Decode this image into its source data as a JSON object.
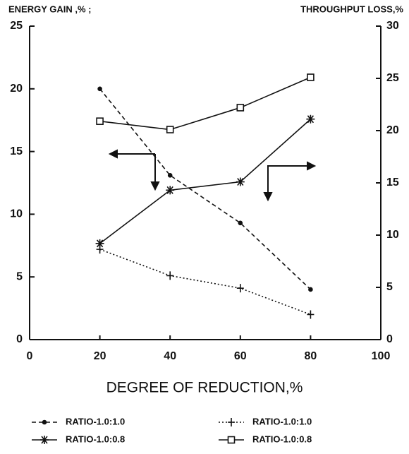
{
  "chart_data": {
    "type": "line",
    "y_label": "ENERGY GAIN ,% ;",
    "y2_label": "THROUGHPUT LOSS,%",
    "x_label": "DEGREE OF REDUCTION,%",
    "x": [
      20,
      40,
      60,
      80
    ],
    "series": [
      {
        "name": "RATIO-1.0:1.0",
        "color": "#111111",
        "marker": "dot",
        "line_style": "dashed",
        "values": [
          20,
          13.1,
          9.3,
          4
        ]
      },
      {
        "name": "RATIO-1.0:1.0",
        "color": "#111111",
        "marker": "plus",
        "line_style": "dotted",
        "values": [
          7.2,
          5.1,
          4.1,
          2
        ]
      },
      {
        "name": "RATIO-1.0:0.8",
        "color": "#111111",
        "marker": "asterisk",
        "line_style": "solid",
        "axis": "y2",
        "values": [
          9.2,
          14.3,
          15.1,
          21.1
        ]
      },
      {
        "name": "RATIO-1.0:0.8",
        "color": "#111111",
        "marker": "square",
        "line_style": "solid",
        "axis": "y2",
        "values": [
          20.9,
          20.1,
          22.2,
          25.1
        ]
      }
    ],
    "xlim": [
      0,
      100
    ],
    "xticks": [
      0,
      20,
      40,
      60,
      80,
      100
    ],
    "ylim": [
      0,
      25
    ],
    "yticks": [
      0,
      5,
      10,
      15,
      20,
      25
    ],
    "y2lim": [
      0,
      30
    ],
    "y2ticks": [
      0,
      5,
      10,
      15,
      20,
      25,
      30
    ]
  }
}
